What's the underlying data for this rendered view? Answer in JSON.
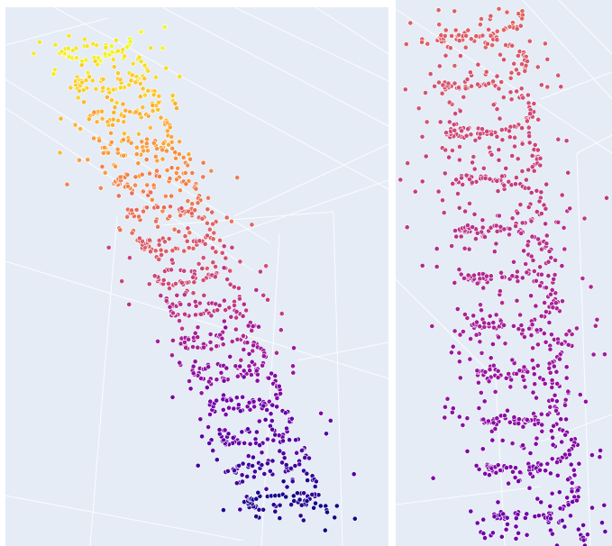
{
  "chart_data": [
    {
      "type": "scatter",
      "subtype": "3d-scatter",
      "title": "",
      "xlabel": "",
      "ylabel": "",
      "zlabel": "",
      "grid": true,
      "legend": "none",
      "background_color": "#e5ecf6",
      "colorscale": "plasma",
      "colorscale_stops": [
        "#0d0887",
        "#46039f",
        "#7201a8",
        "#9c179e",
        "#bd3786",
        "#d8576b",
        "#ed7953",
        "#fb9f3a",
        "#fdca26",
        "#f0f921"
      ],
      "color_range": [
        0,
        1
      ],
      "marker_outline_color": "#ffffff",
      "shape": "helix with scattered outliers",
      "approx_point_count": 1000
    },
    {
      "type": "scatter",
      "subtype": "3d-scatter",
      "title": "",
      "xlabel": "",
      "ylabel": "",
      "zlabel": "",
      "grid": true,
      "legend": "none",
      "background_color": "#e5ecf6",
      "colorscale": "plasma",
      "visible_color_range": [
        0.2,
        0.6
      ],
      "marker_outline_color": "#ffffff",
      "shape": "helix with scattered outliers (zoomed view)",
      "approx_point_count": 1000
    }
  ]
}
